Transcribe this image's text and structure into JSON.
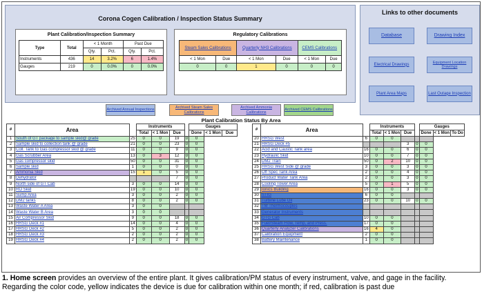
{
  "main_title": "Corona Cogen Calibration / Inspection Status Summary",
  "plant_summary": {
    "title": "Plant Calibration/Inspection Summary",
    "col_type": "Type",
    "col_total": "Total",
    "col_lt1": "< 1 Month",
    "col_pd": "Past Due",
    "col_qty": "Qty.",
    "col_pct": "Pct.",
    "rows": [
      {
        "type": "Instruments",
        "total": "436",
        "lt_qty": "14",
        "lt_pct": "3.2%",
        "pd_qty": "6",
        "pd_pct": "1.4%"
      },
      {
        "type": "Gauges",
        "total": "219",
        "lt_qty": "0",
        "lt_pct": "0.0%",
        "pd_qty": "0",
        "pd_pct": "0.0%"
      }
    ]
  },
  "regulatory": {
    "title": "Regulatory Calibrations",
    "groups": [
      "Steam Sales Calibrations",
      "Quarterly NH3 Calibrations",
      "CEMS Calibrations"
    ],
    "sub_lt": "< 1 Mon",
    "sub_due": "Due",
    "values": [
      "0",
      "0",
      "1",
      "0",
      "0",
      "0"
    ]
  },
  "links": {
    "title": "Links to other documents",
    "items": [
      "Database",
      "Drawing Index",
      "Electrical Drawings",
      "Equipment Location Drawings",
      "Plant Area Maps",
      "Last Outage Inspection"
    ]
  },
  "archived": [
    "Archived Annual Inspections",
    "Archived Steam Sales Calibrations",
    "Archived Ammonia Calibrations",
    "Archived CEMS Calibrations"
  ],
  "status_title": "Plant Calibration Status By Area",
  "area_headers": {
    "num": "#",
    "area": "Area",
    "instruments": "Instruments",
    "gauges": "Gauges",
    "total": "Total",
    "lt1": "< 1 Mon",
    "due": "Due",
    "done": "Done",
    "todo": "To Do"
  },
  "areas_left": [
    {
      "n": "1",
      "a": "South of GT package to sample skid@ grade",
      "it": "25",
      "il": "0",
      "id": "0",
      "gd": "19",
      "gl": "0",
      "gdu": "0"
    },
    {
      "n": "2",
      "a": "Sample skid to collection tank @ grade",
      "it": "21",
      "il": "0",
      "id": "0",
      "gd": "23",
      "gl": "0",
      "gdu": "0"
    },
    {
      "n": "3",
      "a": "Coll. Tank to Gas compressor skid @ grade",
      "it": "11",
      "il": "0",
      "id": "0",
      "gd": "9",
      "gl": "0",
      "gdu": "0"
    },
    {
      "n": "4",
      "a": "Gas Scrubber Area",
      "it": "13",
      "il": "0",
      "id": "3",
      "gd": "12",
      "gl": "0",
      "gdu": "0"
    },
    {
      "n": "5",
      "a": "Gas compressor skid",
      "it": "50",
      "il": "0",
      "id": "0",
      "gd": "31",
      "gl": "0",
      "gdu": "0"
    },
    {
      "n": "6",
      "a": "Sample skid",
      "it": "1",
      "il": "0",
      "id": "0",
      "gd": "0",
      "gl": "0",
      "gdu": "0"
    },
    {
      "n": "7",
      "a": "Ammonia Skid",
      "it": "15",
      "il": "1",
      "id": "0",
      "gd": "5",
      "gl": "0",
      "gdu": "0"
    },
    {
      "n": "8",
      "a": "Dehydrator",
      "it": "",
      "il": "",
      "id": "",
      "gd": "7",
      "gl": "0",
      "gdu": "0"
    },
    {
      "n": "9",
      "a": "North side of GT Cab",
      "it": "3",
      "il": "0",
      "id": "0",
      "gd": "14",
      "gl": "0",
      "gdu": "0"
    },
    {
      "n": "10",
      "a": "RO Skid",
      "it": "19",
      "il": "0",
      "id": "0",
      "gd": "10",
      "gl": "0",
      "gdu": "0"
    },
    {
      "n": "11",
      "a": "Sump Area",
      "it": "3",
      "il": "0",
      "id": "0",
      "gd": "2",
      "gl": "0",
      "gdu": "0"
    },
    {
      "n": "12",
      "a": "DM2 tanks",
      "it": "8",
      "il": "0",
      "id": "0",
      "gd": "2",
      "gl": "0",
      "gdu": "0"
    },
    {
      "n": "13",
      "a": "Waste Water A Area",
      "it": "3",
      "il": "0",
      "id": "0",
      "gd": "",
      "gl": "",
      "gdu": ""
    },
    {
      "n": "14",
      "a": "Waste Water B Area",
      "it": "3",
      "il": "0",
      "id": "0",
      "gd": "",
      "gl": "",
      "gdu": ""
    },
    {
      "n": "15",
      "a": "Air Compressor Skid",
      "it": "9",
      "il": "0",
      "id": "0",
      "gd": "18",
      "gl": "0",
      "gdu": "0"
    },
    {
      "n": "16",
      "a": "HRSG Deck #1",
      "it": "14",
      "il": "0",
      "id": "0",
      "gd": "4",
      "gl": "0",
      "gdu": "0"
    },
    {
      "n": "17",
      "a": "HRSG Deck #2",
      "it": "5",
      "il": "0",
      "id": "0",
      "gd": "2",
      "gl": "0",
      "gdu": "0"
    },
    {
      "n": "18",
      "a": "HRSG Deck #3",
      "it": "2",
      "il": "0",
      "id": "0",
      "gd": "2",
      "gl": "0",
      "gdu": "0"
    },
    {
      "n": "19",
      "a": "HRSG Deck #4",
      "it": "2",
      "il": "0",
      "id": "0",
      "gd": "2",
      "gl": "0",
      "gdu": "0"
    }
  ],
  "areas_right": [
    {
      "n": "20",
      "a": "HRSG West",
      "it": "6",
      "il": "0",
      "id": "0",
      "gd": "",
      "gl": "",
      "gdu": ""
    },
    {
      "n": "21",
      "a": "HRSG Deck #5",
      "it": "",
      "il": "",
      "id": "",
      "gd": "3",
      "gl": "0",
      "gdu": "0"
    },
    {
      "n": "22",
      "a": "Acid and Caustic Tank area",
      "it": "16",
      "il": "0",
      "id": "0",
      "gd": "6",
      "gl": "0",
      "gdu": "0"
    },
    {
      "n": "23",
      "a": "Hydraulic Skid",
      "it": "10",
      "il": "0",
      "id": "0",
      "gd": "7",
      "gl": "0",
      "gdu": "0"
    },
    {
      "n": "24",
      "a": "DM2 Train",
      "it": "50",
      "il": "0",
      "id": "2",
      "gd": "10",
      "gl": "0",
      "gdu": "0"
    },
    {
      "n": "25",
      "a": "HRSG West Side @ grade",
      "it": "3",
      "il": "0",
      "id": "0",
      "gd": "3",
      "gl": "0",
      "gdu": "0"
    },
    {
      "n": "26",
      "a": "Off Spec Tank Area",
      "it": "2",
      "il": "0",
      "id": "0",
      "gd": "4",
      "gl": "0",
      "gdu": "0"
    },
    {
      "n": "27",
      "a": "Product Water Tank Area",
      "it": "2",
      "il": "0",
      "id": "0",
      "gd": "3",
      "gl": "0",
      "gdu": "0"
    },
    {
      "n": "28",
      "a": "Cooling Tower Area",
      "it": "5",
      "il": "0",
      "id": "1",
      "gd": "5",
      "gl": "0",
      "gdu": "0"
    },
    {
      "n": "29",
      "a": "Ionics Building",
      "it": "16",
      "il": "0",
      "id": "0",
      "gd": "3",
      "gl": "0",
      "gdu": "0"
    },
    {
      "n": "30",
      "a": "STIG",
      "it": "6",
      "il": "0",
      "id": "0",
      "gd": "",
      "gl": "",
      "gdu": ""
    },
    {
      "n": "31",
      "a": "Turbine Lube Oil",
      "it": "23",
      "il": "0",
      "id": "0",
      "gd": "10",
      "gl": "0",
      "gdu": "0"
    },
    {
      "n": "32",
      "a": "TM Thermocouples",
      "it": "",
      "il": "",
      "id": "",
      "gd": "",
      "gl": "",
      "gdu": ""
    },
    {
      "n": "33",
      "a": "Generator Instruments",
      "it": "",
      "il": "",
      "id": "",
      "gd": "",
      "gl": "",
      "gdu": ""
    },
    {
      "n": "34",
      "a": "GTG Cab",
      "it": "10",
      "il": "0",
      "id": "0",
      "gd": "",
      "gl": "",
      "gdu": ""
    },
    {
      "n": "35",
      "a": "Fuel/Steam Flow, Temp, and Press.",
      "it": "17",
      "il": "0",
      "id": "0",
      "gd": "",
      "gl": "",
      "gdu": ""
    },
    {
      "n": "36",
      "a": "Quarterly Analyzer Calibrations",
      "it": "16",
      "il": "4",
      "id": "0",
      "gd": "",
      "gl": "",
      "gdu": ""
    },
    {
      "n": "37",
      "a": "Calibration Equipment",
      "it": "2",
      "il": "0",
      "id": "0",
      "gd": "",
      "gl": "",
      "gdu": ""
    },
    {
      "n": "38",
      "a": "Battery Maintenance",
      "it": "1",
      "il": "0",
      "id": "0",
      "gd": "",
      "gl": "",
      "gdu": ""
    }
  ],
  "caption": {
    "lead": "1. Home screen",
    "text": " provides an overview of the entire plant. It gives calibration/PM status of every instrument, valve, and gage in the facility. Regarding the color code, yellow indicates the device is due for calibration within one month; if red, calibration is past due"
  }
}
